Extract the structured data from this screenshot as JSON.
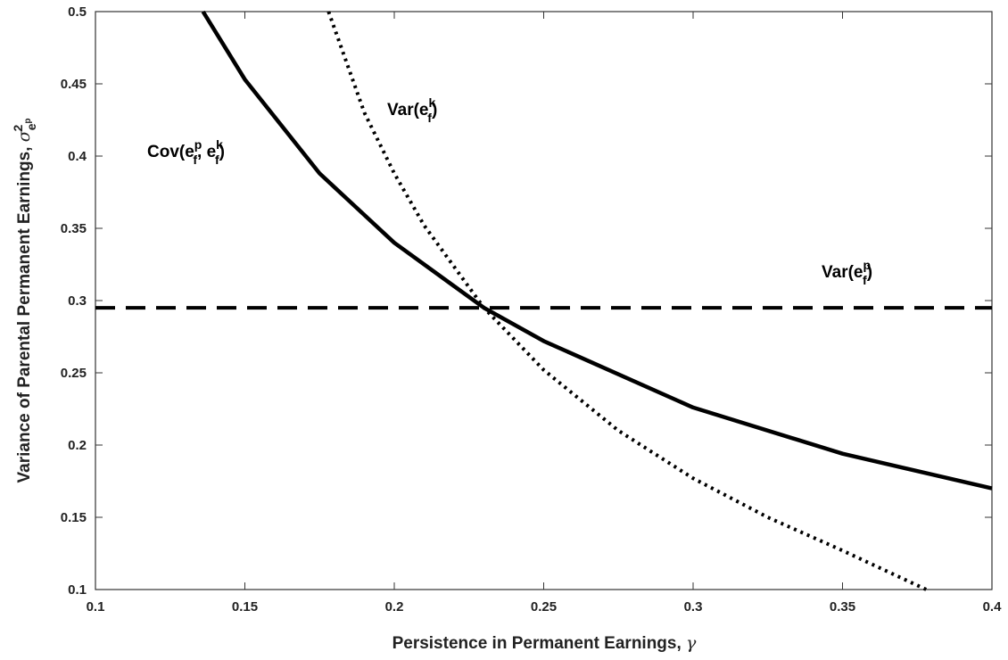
{
  "chart_data": {
    "type": "line",
    "xlabel": {
      "text": "Persistence in Permanent Earnings, ",
      "symbol": "γ"
    },
    "ylabel": {
      "text": "Variance of Parental Permanent Earnings, ",
      "symbol": "σ",
      "sup": "2",
      "sub": "e",
      "subsup": "p"
    },
    "xlim": [
      0.1,
      0.4
    ],
    "ylim": [
      0.1,
      0.5
    ],
    "xticks": [
      0.1,
      0.15,
      0.2,
      0.25,
      0.3,
      0.35,
      0.4
    ],
    "xtick_labels": [
      "0.1",
      "0.15",
      "0.2",
      "0.25",
      "0.3",
      "0.35",
      "0.4"
    ],
    "yticks": [
      0.1,
      0.15,
      0.2,
      0.25,
      0.3,
      0.35,
      0.4,
      0.45,
      0.5
    ],
    "ytick_labels": [
      "0.1",
      "0.15",
      "0.2",
      "0.25",
      "0.3",
      "0.35",
      "0.4",
      "0.45",
      "0.5"
    ],
    "grid": false,
    "series": [
      {
        "style": "solid",
        "label": {
          "base": "Cov(e",
          "sup1": "p",
          "sub1": "f",
          "mid": ", e",
          "sup2": "k",
          "sub2": "f",
          "end": ")"
        },
        "x": [
          0.136,
          0.15,
          0.175,
          0.2,
          0.23,
          0.25,
          0.3,
          0.35,
          0.4
        ],
        "y": [
          0.5,
          0.453,
          0.388,
          0.34,
          0.295,
          0.272,
          0.226,
          0.194,
          0.17
        ]
      },
      {
        "style": "dotted",
        "label": {
          "base": "Var(e",
          "sup1": "k",
          "sub1": "f",
          "end": ")"
        },
        "x": [
          0.178,
          0.19,
          0.2,
          0.21,
          0.23,
          0.25,
          0.275,
          0.3,
          0.325,
          0.35,
          0.378
        ],
        "y": [
          0.5,
          0.43,
          0.388,
          0.352,
          0.295,
          0.252,
          0.21,
          0.177,
          0.15,
          0.127,
          0.1
        ]
      },
      {
        "style": "dashed",
        "label": {
          "base": "Var(e",
          "sup1": "p",
          "sub1": "f",
          "end": ")"
        },
        "x": [
          0.1,
          0.4
        ],
        "y": [
          0.295,
          0.295
        ]
      }
    ]
  }
}
